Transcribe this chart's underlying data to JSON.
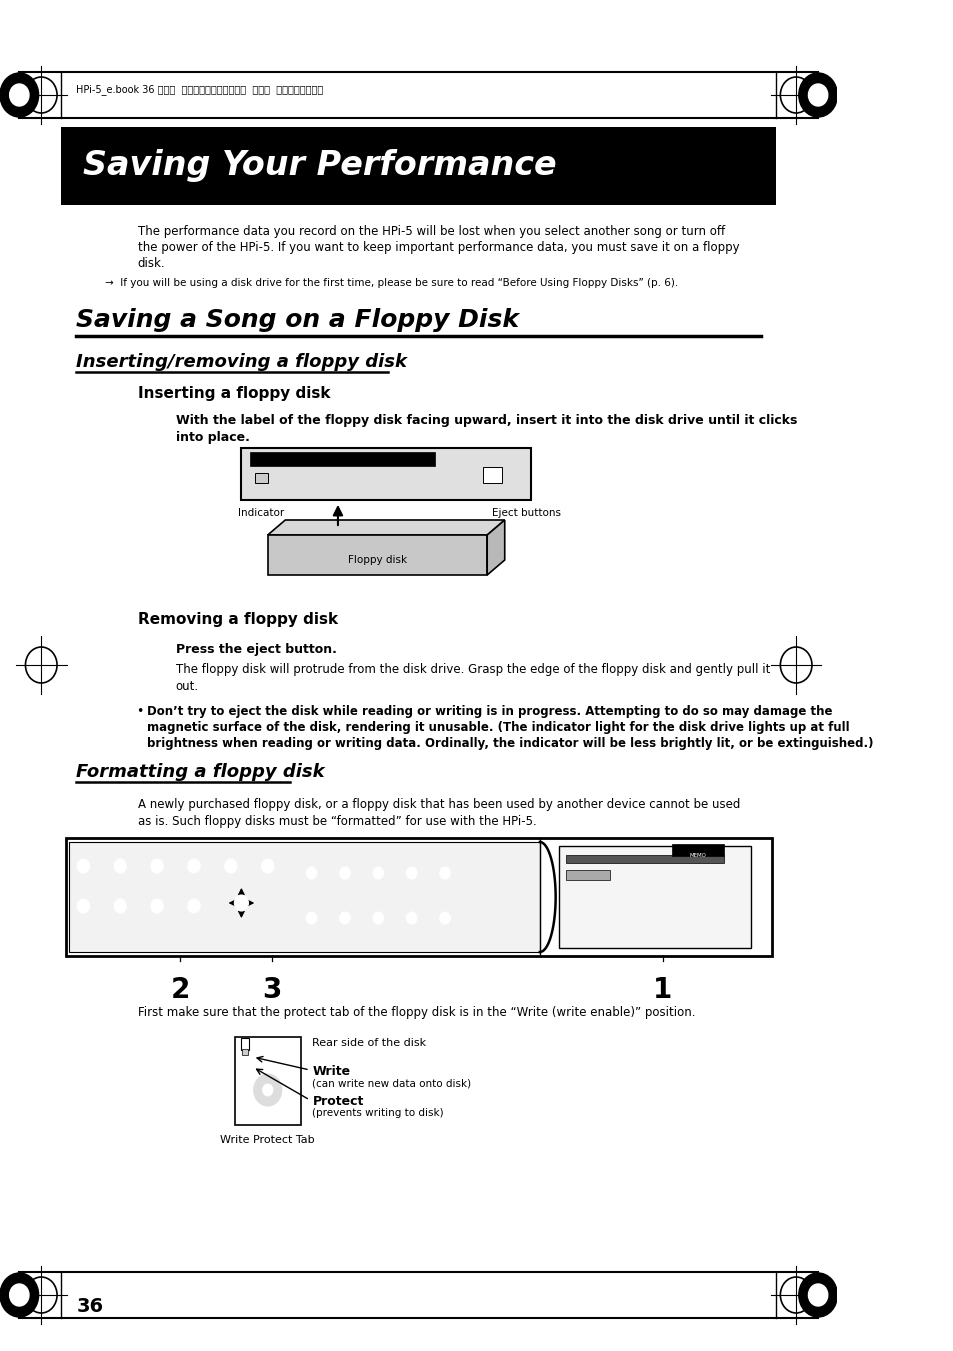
{
  "page_bg": "#ffffff",
  "header_text": "HPi-5_e.book 36 ページ  ２００４年１２月２１日  火曜日  午後１２時４６分",
  "title_bg": "#000000",
  "title_text": "Saving Your Performance",
  "title_color": "#ffffff",
  "section1_title": "Saving a Song on a Floppy Disk",
  "subsection1_title": "Inserting/removing a floppy disk",
  "subsubsection1_title": "Inserting a floppy disk",
  "removing_title": "Removing a floppy disk",
  "press_bold": "Press the eject button.",
  "section2_title": "Formatting a floppy disk",
  "page_number": "36"
}
